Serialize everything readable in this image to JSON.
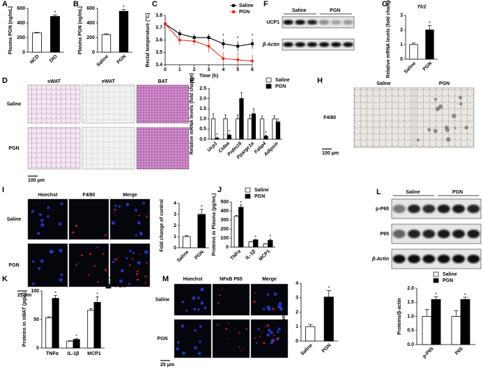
{
  "chart_data": [
    {
      "type": "bar",
      "panel": "A",
      "ylabel": "Plasma PGN (ng/mL)",
      "categories": [
        "NCD",
        "DIO"
      ],
      "values": [
        265,
        490
      ],
      "errors": [
        8,
        20
      ],
      "colors": [
        "#ffffff",
        "#000000"
      ],
      "ylim": [
        0,
        600
      ],
      "yticks": [
        0,
        200,
        400,
        600
      ],
      "annotations": [
        {
          "text": "*",
          "x": "DIO"
        }
      ]
    },
    {
      "type": "bar",
      "panel": "B",
      "ylabel": "Plasma PGN (ng/mL)",
      "categories": [
        "Saline",
        "PGN"
      ],
      "values": [
        240,
        560
      ],
      "errors": [
        10,
        25
      ],
      "colors": [
        "#ffffff",
        "#000000"
      ],
      "ylim": [
        0,
        600
      ],
      "yticks": [
        0,
        200,
        400,
        600
      ],
      "annotations": [
        {
          "text": "*",
          "x": "PGN"
        }
      ]
    },
    {
      "type": "line",
      "panel": "C",
      "ylabel": "Rectal temperature (°C)",
      "xlabel": "Time (h)",
      "x": [
        0,
        1,
        2,
        3,
        4,
        5,
        6
      ],
      "xlim": [
        0,
        6
      ],
      "xticks": [
        0,
        1,
        2,
        3,
        4,
        5,
        6
      ],
      "ylim": [
        3.4,
        3.8
      ],
      "yticks": [
        3.4,
        3.5,
        3.6,
        3.7,
        3.8
      ],
      "series": [
        {
          "name": "Saline",
          "color": "#000000",
          "values": [
            3.73,
            3.65,
            3.62,
            3.62,
            3.57,
            3.55,
            3.57
          ],
          "errors": [
            0.02,
            0.03,
            0.03,
            0.03,
            0.04,
            0.04,
            0.04
          ]
        },
        {
          "name": "PGN",
          "color": "#d7301f",
          "values": [
            3.73,
            3.6,
            3.59,
            3.55,
            3.45,
            3.44,
            3.43
          ],
          "errors": [
            0.02,
            0.04,
            0.03,
            0.05,
            0.05,
            0.06,
            0.05
          ]
        }
      ],
      "annotations": [
        {
          "text": "*",
          "x": 4
        },
        {
          "text": "*",
          "x": 5
        },
        {
          "text": "*",
          "x": 6
        }
      ]
    },
    {
      "type": "bar",
      "panel": "G",
      "title": "Tlr2",
      "ylabel": "Relative mRNA levels (fold change)",
      "categories": [
        "Saline",
        "PGN"
      ],
      "values": [
        1.0,
        2.0
      ],
      "errors": [
        0.1,
        0.3
      ],
      "colors": [
        "#ffffff",
        "#000000"
      ],
      "ylim": [
        0,
        3
      ],
      "yticks": [
        0,
        1,
        2,
        3
      ],
      "annotations": [
        {
          "text": "*",
          "x": "PGN"
        }
      ]
    },
    {
      "type": "bar",
      "panel": "E",
      "ylabel": "Relative mRNA levels (fold change)",
      "categories": [
        "Ucp1",
        "Cidea",
        "Prdm16",
        "Ppargc1a",
        "Fabp4",
        "Adipsin"
      ],
      "ylim": [
        0,
        2.5
      ],
      "yticks": [
        {
          "value": 0,
          "label": "0.0"
        },
        0.5,
        {
          "value": 1,
          "label": "1.0"
        },
        1.5,
        {
          "value": 2,
          "label": "2.0"
        },
        2.5
      ],
      "series": [
        {
          "name": "Saline",
          "color": "#ffffff",
          "values": [
            1,
            1,
            1,
            1,
            1,
            1
          ],
          "errors": [
            0.25,
            0.2,
            0.2,
            0.2,
            0.15,
            0.15
          ]
        },
        {
          "name": "PGN",
          "color": "#000000",
          "values": [
            0.05,
            0.2,
            2.0,
            1.25,
            0.15,
            0.85
          ],
          "errors": [
            0.05,
            0.05,
            0.3,
            0.25,
            0.05,
            0.15
          ]
        }
      ],
      "annotations": [
        {
          "text": "*",
          "x": "Ucp1",
          "series": "PGN"
        },
        {
          "text": "*",
          "x": "Cidea",
          "series": "PGN"
        },
        {
          "text": "*",
          "x": "Fabp4",
          "series": "PGN"
        }
      ]
    },
    {
      "type": "bar",
      "ylabel": "Fold change of control",
      "categories": [
        "Saline",
        "PGN"
      ],
      "values": [
        1.0,
        3.0
      ],
      "errors": [
        0.1,
        0.45
      ],
      "colors": [
        "#ffffff",
        "#000000"
      ],
      "ylim": [
        0,
        4
      ],
      "yticks": [
        0,
        1,
        2,
        3,
        4
      ],
      "annotations": [
        {
          "text": "*",
          "x": "PGN"
        }
      ]
    },
    {
      "type": "bar",
      "panel": "J",
      "ylabel": "Proteins in Plasma (pg/mL)",
      "categories": [
        "TNFα",
        "IL-1β",
        "MCP1"
      ],
      "ylim": [
        0,
        500
      ],
      "yticks": [
        0,
        100,
        200,
        300,
        400,
        500
      ],
      "series": [
        {
          "name": "Saline",
          "color": "#ffffff",
          "values": [
            340,
            60,
            35
          ],
          "errors": [
            10,
            3,
            3
          ]
        },
        {
          "name": "PGN",
          "color": "#000000",
          "values": [
            440,
            80,
            75
          ],
          "errors": [
            25,
            5,
            12
          ]
        }
      ],
      "annotations": [
        {
          "text": "*",
          "x": "TNFα",
          "series": "PGN"
        },
        {
          "text": "*",
          "x": "IL-1β",
          "series": "PGN"
        },
        {
          "text": "*",
          "x": "MCP1",
          "series": "PGN"
        }
      ]
    },
    {
      "type": "bar",
      "panel": "K",
      "ylabel": "Proteins in sWAT (pg/g)",
      "categories": [
        "TNFα",
        "IL-1β",
        "MCP1"
      ],
      "ylim": [
        0,
        100
      ],
      "yticks": [
        0,
        50,
        100
      ],
      "series": [
        {
          "name": "Saline",
          "color": "#ffffff",
          "values": [
            53,
            12,
            66
          ],
          "errors": [
            2,
            1,
            3
          ]
        },
        {
          "name": "PGN",
          "color": "#000000",
          "values": [
            87,
            15,
            80
          ],
          "errors": [
            5,
            2,
            10
          ]
        }
      ],
      "annotations": [
        {
          "text": "*",
          "x": "TNFα",
          "series": "PGN"
        },
        {
          "text": "*",
          "x": "IL-1β",
          "series": "PGN"
        },
        {
          "text": "*",
          "x": "MCP1",
          "series": "PGN"
        }
      ]
    },
    {
      "type": "bar",
      "ylabel": "Fold change of control",
      "categories": [
        "Saline",
        "PGN"
      ],
      "values": [
        1.0,
        3.05
      ],
      "errors": [
        0.15,
        0.45
      ],
      "colors": [
        "#ffffff",
        "#000000"
      ],
      "ylim": [
        0,
        4
      ],
      "yticks": [
        0,
        1,
        2,
        3,
        4
      ],
      "annotations": [
        {
          "text": "*",
          "x": "PGN"
        }
      ]
    },
    {
      "type": "bar",
      "ylabel": "Proteins/β-actin",
      "categories": [
        "p-P65",
        "P65"
      ],
      "ylim": [
        0,
        2
      ],
      "yticks": [
        {
          "value": 0,
          "label": "0.0"
        },
        0.5,
        {
          "value": 1,
          "label": "1.0"
        },
        1.5,
        {
          "value": 2,
          "label": "2.0"
        }
      ],
      "series": [
        {
          "name": "Saline",
          "color": "#ffffff",
          "values": [
            1.0,
            1.0
          ],
          "errors": [
            0.25,
            0.2
          ]
        },
        {
          "name": "PGN",
          "color": "#000000",
          "values": [
            1.6,
            1.6
          ],
          "errors": [
            0.1,
            0.08
          ]
        }
      ],
      "annotations": [
        {
          "text": "*",
          "x": "p-P65",
          "series": "PGN"
        },
        {
          "text": "*",
          "x": "P65",
          "series": "PGN"
        }
      ]
    }
  ],
  "image_panels": [
    {
      "panel": "D",
      "columns": [
        "sWAT",
        "eWAT",
        "BAT"
      ],
      "rows": [
        "Saline",
        "PGN"
      ],
      "scale_bar": "100 μm"
    },
    {
      "panel": "H",
      "columns": [
        "Saline",
        "PGN"
      ],
      "rows": [
        "F4/80"
      ],
      "scale_bar": "100 μm"
    },
    {
      "panel": "I",
      "columns": [
        "Hoechst",
        "F4/80",
        "Merge"
      ],
      "rows": [
        "Saline",
        "PGN"
      ],
      "scale_bar": "25 μm"
    },
    {
      "panel": "M",
      "columns": [
        "Hoechst",
        "NFκB P65",
        "Merge"
      ],
      "rows": [
        "Saline",
        "PGN"
      ],
      "scale_bar": "25 μm"
    }
  ],
  "blots": [
    {
      "panel": "F",
      "groups": [
        "Saline",
        "PGN"
      ],
      "rows": [
        "UCP1",
        "β-Actin"
      ]
    },
    {
      "panel": "L",
      "groups": [
        "Saline",
        "PGN"
      ],
      "rows": [
        "p-P65",
        "P65",
        "β-Actin"
      ]
    }
  ]
}
